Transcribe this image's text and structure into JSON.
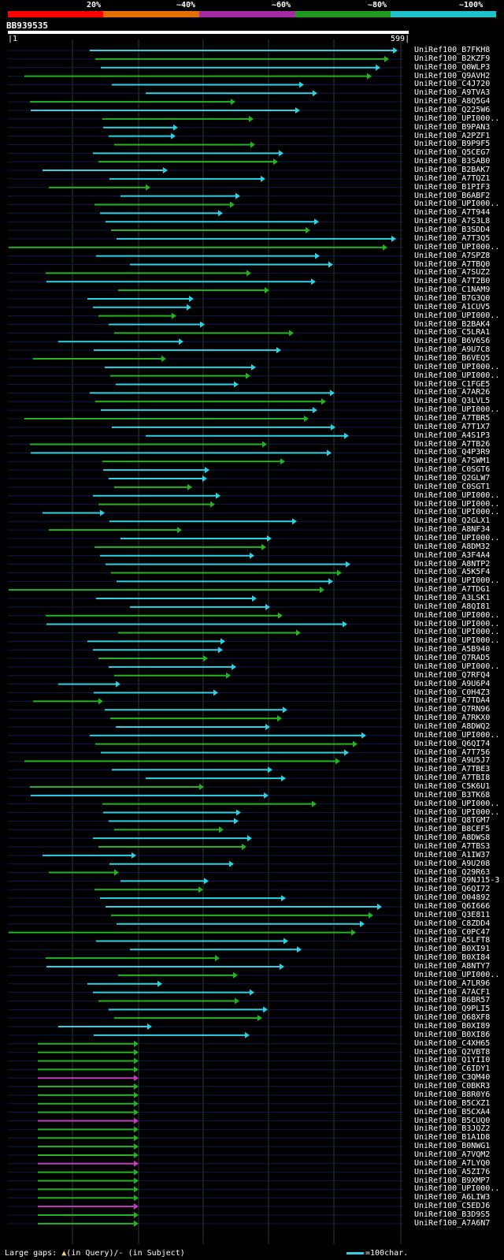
{
  "query": {
    "id": "BB939535",
    "start": "1",
    "end": "599"
  },
  "scale": {
    "labels": [
      "20%",
      "~40%",
      "~60%",
      "~80%",
      "~100%"
    ],
    "colors": [
      "#ff0000",
      "#e36f00",
      "#a52aa5",
      "#1f9a1f",
      "#1fc2c8"
    ]
  },
  "legend": {
    "gaps_prefix": "Large gaps:",
    "gaps_query": "(in Query)/",
    "gaps_subject": "- (in Subject)",
    "scale_text": "=100char."
  },
  "hits": [
    "UniRef100_B7FKH8",
    "UniRef100_B2KZF9",
    "UniRef100_Q0WLP3",
    "UniRef100_Q9AVH2",
    "UniRef100_C4J720",
    "UniRef100_A9TVA3",
    "UniRef100_A8Q5G4",
    "UniRef100_Q225W6",
    "UniRef100_UPI000..",
    "UniRef100_B9PAN3",
    "UniRef100_A2PZF1",
    "UniRef100_B9P9F5",
    "UniRef100_Q5CEG7",
    "UniRef100_B3SAB0",
    "UniRef100_B2BAK7",
    "UniRef100_A7TQZ1",
    "UniRef100_B1PIF3",
    "UniRef100_B6ABF2",
    "UniRef100_UPI000..",
    "UniRef100_A7T944",
    "UniRef100_A7S3L8",
    "UniRef100_B3SDD4",
    "UniRef100_A7T3Q5",
    "UniRef100_UPI000..",
    "UniRef100_A7SPZ8",
    "UniRef100_A7TBQ0",
    "UniRef100_A7SUZ2",
    "UniRef100_A7T2B0",
    "UniRef100_C1NAM9",
    "UniRef100_B7G3Q0",
    "UniRef100_A1CUV5",
    "UniRef100_UPI000..",
    "UniRef100_B2BAK4",
    "UniRef100_C5LRA1",
    "UniRef100_B6V6S6",
    "UniRef100_A9U7C8",
    "UniRef100_B6VEQ5",
    "UniRef100_UPI000..",
    "UniRef100_UPI000..",
    "UniRef100_C1FGE5",
    "UniRef100_A7AR26",
    "UniRef100_Q3LVL5",
    "UniRef100_UPI000..",
    "UniRef100_A7TBR5",
    "UniRef100_A7T1X7",
    "UniRef100_A4S1P3",
    "UniRef100_A7TB26",
    "UniRef100_Q4P3R9",
    "UniRef100_A7SWM1",
    "UniRef100_C0SGT6",
    "UniRef100_Q2GLW7",
    "UniRef100_C0SGT1",
    "UniRef100_UPI000..",
    "UniRef100_UPI000..",
    "UniRef100_UPI000..",
    "UniRef100_Q2GLX1",
    "UniRef100_A8NF34",
    "UniRef100_UPI000..",
    "UniRef100_A8DM32",
    "UniRef100_A3F4A4",
    "UniRef100_A8NTP2",
    "UniRef100_A5K5F4",
    "UniRef100_UPI000..",
    "UniRef100_A7TDG1",
    "UniRef100_A3LSK1",
    "UniRef100_A8QI81",
    "UniRef100_UPI000..",
    "UniRef100_UPI000..",
    "UniRef100_UPI000..",
    "UniRef100_UPI000..",
    "UniRef100_A5B940",
    "UniRef100_Q7RAD5",
    "UniRef100_UPI000..",
    "UniRef100_Q7RFQ4",
    "UniRef100_A9U6P4",
    "UniRef100_C0H4Z3",
    "UniRef100_A7TDA4",
    "UniRef100_Q7RN96",
    "UniRef100_A7RKX0",
    "UniRef100_A8DWQ2",
    "UniRef100_UPI000..",
    "UniRef100_Q6QI74",
    "UniRef100_A7T756",
    "UniRef100_A9U5J7",
    "UniRef100_A7TBE3",
    "UniRef100_A7TBI8",
    "UniRef100_C5K6U1",
    "UniRef100_B3TK68",
    "UniRef100_UPI000..",
    "UniRef100_UPI000..",
    "UniRef100_Q8TGM7",
    "UniRef100_B8CEF5",
    "UniRef100_A8DWS8",
    "UniRef100_A7TBS3",
    "UniRef100_A1IW37",
    "UniRef100_A9U208",
    "UniRef100_Q29R63",
    "UniRef100_Q9NJ15-3",
    "UniRef100_Q6QI72",
    "UniRef100_O04892",
    "UniRef100_Q6I666",
    "UniRef100_Q3E811",
    "UniRef100_C8ZDD4",
    "UniRef100_C0PC47",
    "UniRef100_A5LFT8",
    "UniRef100_B0XI91",
    "UniRef100_B0XI84",
    "UniRef100_A8NTY7",
    "UniRef100_UPI000..",
    "UniRef100_A7LR96",
    "UniRef100_A7ACF1",
    "UniRef100_B6BR57",
    "UniRef100_Q9PLI5",
    "UniRef100_Q68XF8",
    "UniRef100_B0XI89",
    "UniRef100_B0XI86",
    "UniRef100_C4XH65",
    "UniRef100_Q2VBT8",
    "UniRef100_Q1YII0",
    "UniRef100_C6IDY1",
    "UniRef100_C3QM40",
    "UniRef100_C0BKR3",
    "UniRef100_B8R0Y6",
    "UniRef100_B5CXZ1",
    "UniRef100_B5CXA4",
    "UniRef100_B5CUQ0",
    "UniRef100_B3JQZ2",
    "UniRef100_B1A1D8",
    "UniRef100_B0NWG1",
    "UniRef100_A7VQM2",
    "UniRef100_A7LYQ0",
    "UniRef100_A5ZI76",
    "UniRef100_B9XMP7",
    "UniRef100_UPI000..",
    "UniRef100_A6LIW3",
    "UniRef100_C5EDJ6",
    "UniRef100_B3D9S5",
    "UniRef100_A7A6N7"
  ]
}
